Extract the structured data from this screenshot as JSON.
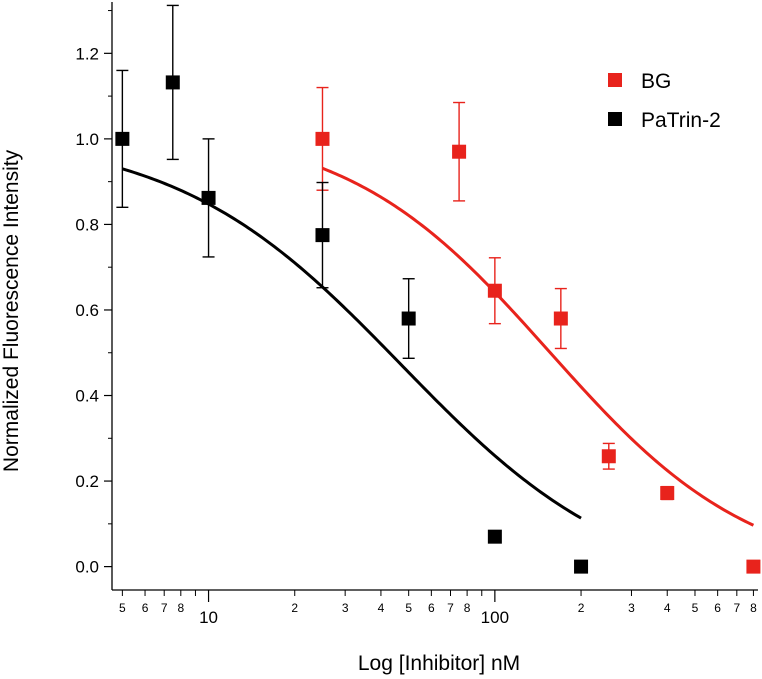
{
  "chart_data": {
    "type": "scatter",
    "xlabel": "Log [Inhibitor] nM",
    "ylabel": "Normalized Fluorescence Intensity",
    "xscale": "log",
    "xlim": [
      4.6,
      830
    ],
    "ylim": [
      -0.05,
      1.32
    ],
    "y_ticks": [
      "0.0",
      "0.2",
      "0.4",
      "0.6",
      "0.8",
      "1.0",
      "1.2"
    ],
    "x_major_ticks": [
      "10",
      "100"
    ],
    "x_minor_tick_labels": [
      {
        "v": 5,
        "t": "5"
      },
      {
        "v": 6,
        "t": "6"
      },
      {
        "v": 7,
        "t": "7"
      },
      {
        "v": 8,
        "t": "8"
      },
      {
        "v": 20,
        "t": "2"
      },
      {
        "v": 30,
        "t": "3"
      },
      {
        "v": 40,
        "t": "4"
      },
      {
        "v": 50,
        "t": "5"
      },
      {
        "v": 60,
        "t": "6"
      },
      {
        "v": 70,
        "t": "7"
      },
      {
        "v": 80,
        "t": "8"
      },
      {
        "v": 200,
        "t": "2"
      },
      {
        "v": 300,
        "t": "3"
      },
      {
        "v": 400,
        "t": "4"
      },
      {
        "v": 500,
        "t": "5"
      },
      {
        "v": 600,
        "t": "6"
      },
      {
        "v": 700,
        "t": "7"
      },
      {
        "v": 800,
        "t": "8"
      }
    ],
    "grid": false,
    "legend_position": "top-right",
    "series": [
      {
        "name": "BG",
        "color": "#e8231c",
        "points": [
          {
            "x": 25,
            "y": 1.0,
            "err": 0.12
          },
          {
            "x": 75,
            "y": 0.97,
            "err": 0.115
          },
          {
            "x": 100,
            "y": 0.645,
            "err": 0.077
          },
          {
            "x": 170,
            "y": 0.58,
            "err": 0.07
          },
          {
            "x": 250,
            "y": 0.258,
            "err": 0.03
          },
          {
            "x": 400,
            "y": 0.172,
            "err": 0.015
          },
          {
            "x": 800,
            "y": 0.0,
            "err": 0
          }
        ],
        "fit": {
          "top": 1.035,
          "bottom": -0.03,
          "ic50": 155,
          "hill": 1.22,
          "x_range": [
            25,
            800
          ]
        }
      },
      {
        "name": "PaTrin-2",
        "color": "#000000",
        "points": [
          {
            "x": 5,
            "y": 1.0,
            "err": 0.16
          },
          {
            "x": 7.5,
            "y": 1.132,
            "err": 0.18
          },
          {
            "x": 10,
            "y": 0.862,
            "err": 0.138
          },
          {
            "x": 25,
            "y": 0.775,
            "err": 0.123
          },
          {
            "x": 50,
            "y": 0.58,
            "err": 0.093
          },
          {
            "x": 100,
            "y": 0.07,
            "err": 0
          },
          {
            "x": 200,
            "y": 0.0,
            "err": 0
          }
        ],
        "fit": {
          "top": 1.015,
          "bottom": -0.07,
          "ic50": 47,
          "hill": 1.1,
          "x_range": [
            5,
            200
          ]
        }
      }
    ]
  }
}
